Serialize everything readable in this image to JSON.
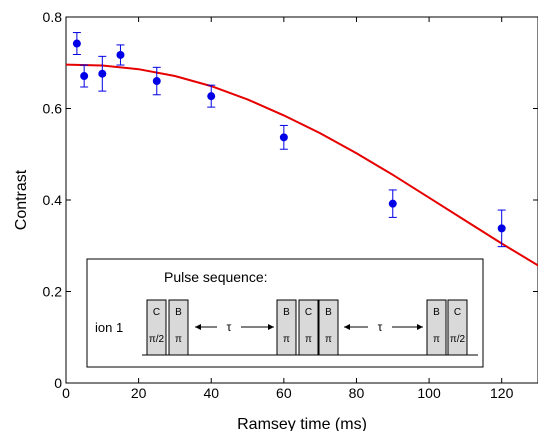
{
  "chart_data": {
    "type": "scatter",
    "title": "",
    "xlabel": "Ramsey time (ms)",
    "ylabel": "Contrast",
    "xlim": [
      0,
      130
    ],
    "ylim": [
      0,
      0.8
    ],
    "xticks": [
      0,
      20,
      40,
      60,
      80,
      100,
      120
    ],
    "yticks": [
      0,
      0.2,
      0.4,
      0.6,
      0.8
    ],
    "xtick_labels": [
      "0",
      "20",
      "40",
      "60",
      "80",
      "100",
      "120"
    ],
    "ytick_labels": [
      "0",
      "0.2",
      "0.4",
      "0.6",
      "0.8"
    ],
    "grid": false,
    "series": [
      {
        "kind": "points-with-errorbars",
        "color": "#0000e6",
        "x": [
          3,
          5,
          10,
          15,
          25,
          40,
          60,
          90,
          120
        ],
        "y": [
          0.742,
          0.671,
          0.676,
          0.717,
          0.66,
          0.627,
          0.537,
          0.392,
          0.338
        ],
        "yerr": [
          0.024,
          0.024,
          0.038,
          0.022,
          0.03,
          0.024,
          0.026,
          0.03,
          0.04
        ]
      },
      {
        "kind": "fit-curve",
        "color": "#e60000",
        "x": [
          0,
          10,
          20,
          30,
          40,
          50,
          60,
          70,
          80,
          90,
          100,
          110,
          120,
          130
        ],
        "y": [
          0.696,
          0.694,
          0.686,
          0.671,
          0.649,
          0.62,
          0.585,
          0.546,
          0.502,
          0.455,
          0.405,
          0.355,
          0.305,
          0.257
        ]
      }
    ]
  },
  "inset": {
    "title": "Pulse sequence:",
    "ion_label": "ion 1",
    "tau": "τ",
    "pulses": [
      {
        "top": "C",
        "bottom": "π/2"
      },
      {
        "top": "B",
        "bottom": "π"
      },
      {
        "top": "B",
        "bottom": "π"
      },
      {
        "top": "C",
        "bottom": "π"
      },
      {
        "top": "B",
        "bottom": "π"
      },
      {
        "top": "B",
        "bottom": "π"
      },
      {
        "top": "C",
        "bottom": "π/2"
      }
    ]
  }
}
